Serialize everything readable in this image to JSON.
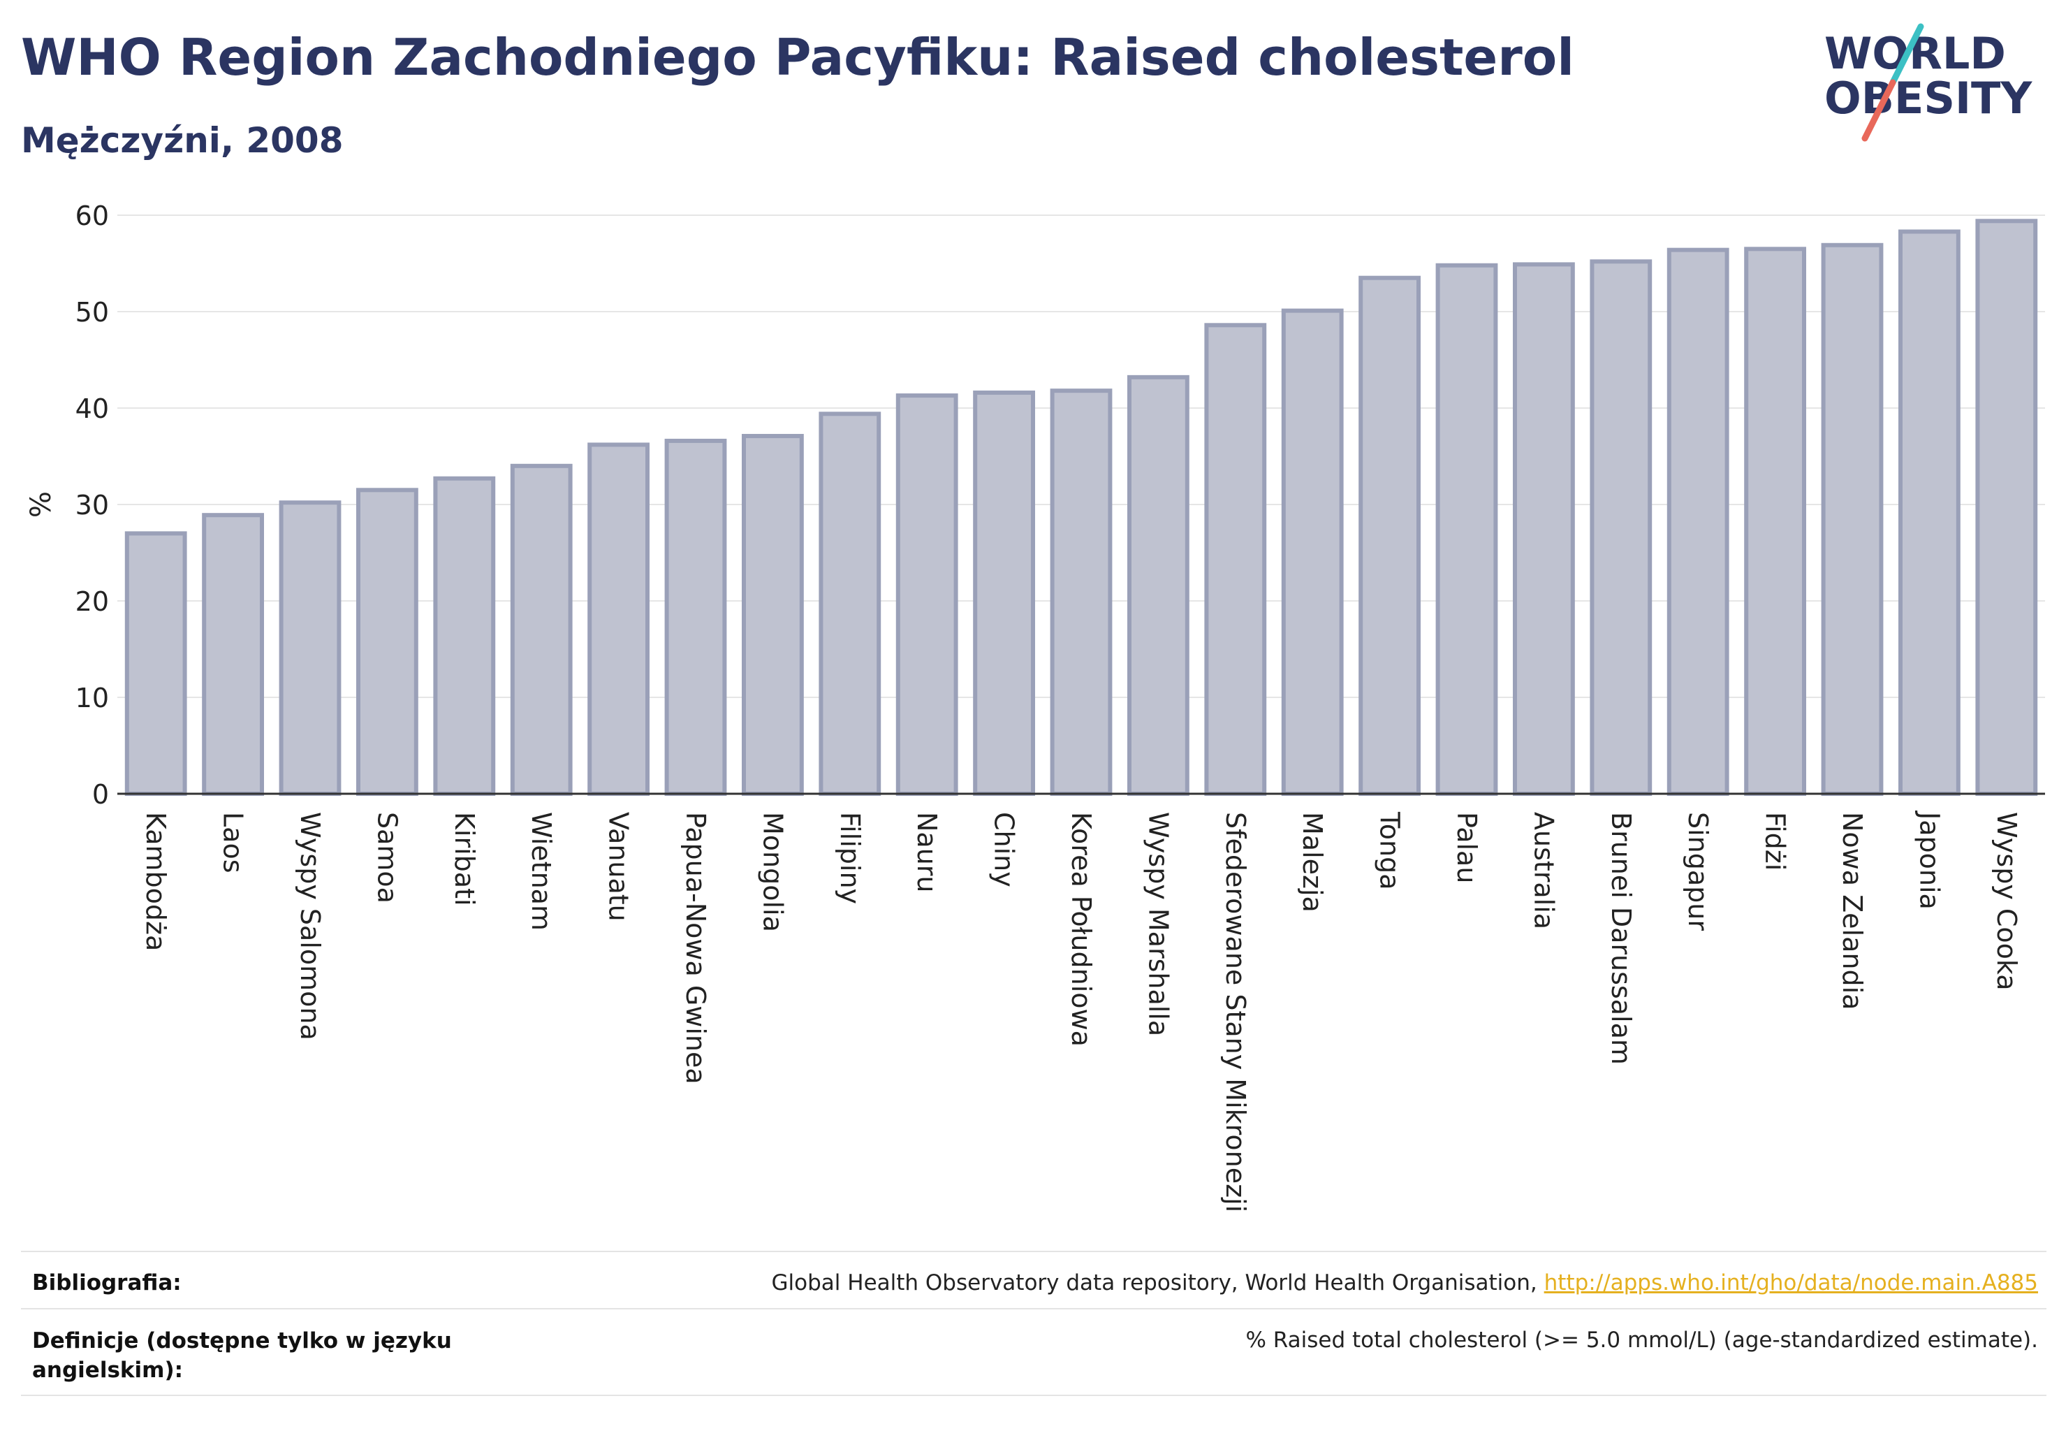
{
  "header": {
    "title": "WHO Region Zachodniego Pacyfiku: Raised cholesterol",
    "subtitle": "Mężczyźni, 2008"
  },
  "logo": {
    "line1": "WORLD",
    "line2": "OBESITY",
    "text_color": "#2b3562",
    "slash_colors": [
      "#3cc0c4",
      "#e8685a"
    ]
  },
  "chart_data": {
    "type": "bar",
    "title": "WHO Region Zachodniego Pacyfiku: Raised cholesterol",
    "subtitle": "Mężczyźni, 2008",
    "xlabel": "",
    "ylabel": "%",
    "ylim": [
      0,
      60
    ],
    "yticks": [
      0,
      10,
      20,
      30,
      40,
      50,
      60
    ],
    "grid": true,
    "bar_color": "#bfc2d0",
    "bar_edge_color": "#9aa0b8",
    "categories": [
      "Kambodża",
      "Laos",
      "Wyspy Salomona",
      "Samoa",
      "Kiribati",
      "Wietnam",
      "Vanuatu",
      "Papua-Nowa Gwinea",
      "Mongolia",
      "Filipiny",
      "Nauru",
      "Chiny",
      "Korea Południowa",
      "Wyspy Marshalla",
      "Sfederowane Stany Mikronezji",
      "Malezja",
      "Tonga",
      "Palau",
      "Australia",
      "Brunei Darussalam",
      "Singapur",
      "Fidżi",
      "Nowa Zelandia",
      "Japonia",
      "Wyspy Cooka"
    ],
    "values": [
      27.0,
      28.9,
      30.2,
      31.5,
      32.7,
      34.0,
      36.2,
      36.6,
      37.1,
      39.4,
      41.3,
      41.6,
      41.8,
      43.2,
      48.6,
      50.1,
      53.5,
      54.8,
      54.9,
      55.2,
      56.4,
      56.5,
      56.9,
      58.3,
      59.4
    ]
  },
  "footer": {
    "bibliography_label": "Bibliografia:",
    "bibliography_text": "Global Health Observatory data repository, World Health Organisation, ",
    "bibliography_link": "http://apps.who.int/gho/data/node.main.A885",
    "definition_label": "Definicje (dostępne tylko w języku angielskim):",
    "definition_text": "% Raised total cholesterol (>= 5.0 mmol/L) (age-standardized estimate).",
    "link_color": "#e5b01f"
  }
}
